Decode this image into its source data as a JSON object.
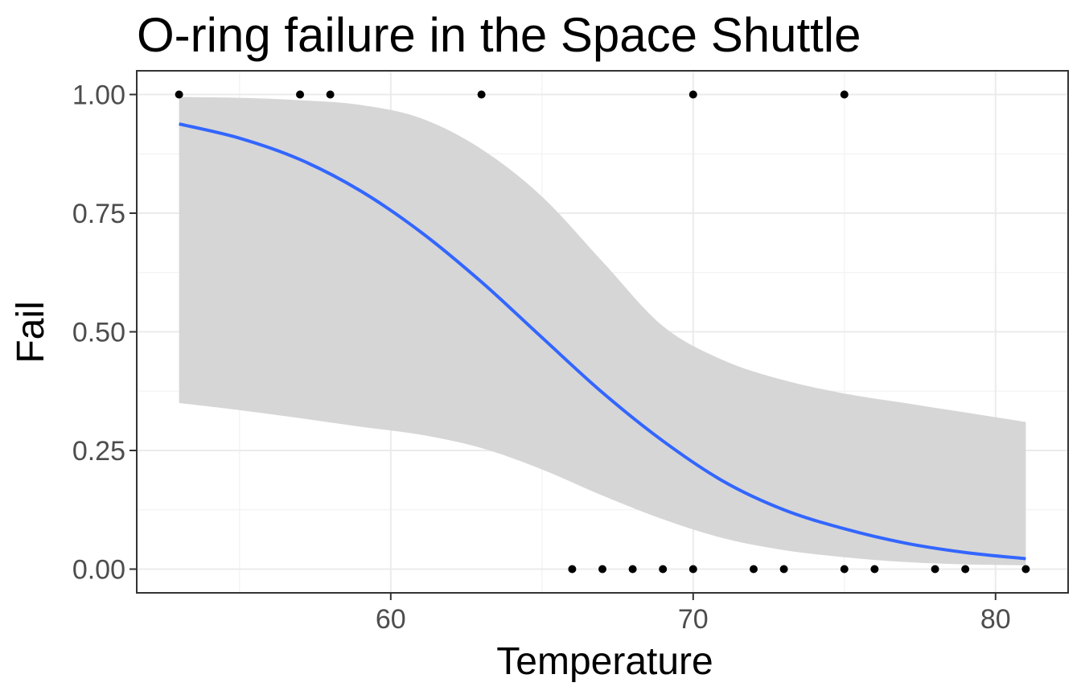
{
  "chart_data": {
    "type": "scatter",
    "title": "O-ring failure in the Space Shuttle",
    "xlabel": "Temperature",
    "ylabel": "Fail",
    "xlim": [
      51.6,
      82.4
    ],
    "ylim": [
      -0.05,
      1.05
    ],
    "x_ticks": [
      60,
      70,
      80
    ],
    "x_tick_labels": [
      "60",
      "70",
      "80"
    ],
    "y_ticks": [
      0,
      0.25,
      0.5,
      0.75,
      1
    ],
    "y_tick_labels": [
      "0.00",
      "0.25",
      "0.50",
      "0.75",
      "1.00"
    ],
    "grid": true,
    "legend": "none",
    "points": {
      "x": [
        53,
        57,
        58,
        63,
        70,
        75,
        66,
        67,
        68,
        69,
        70,
        72,
        73,
        75,
        76,
        78,
        79,
        81
      ],
      "y": [
        1,
        1,
        1,
        1,
        1,
        1,
        0,
        0,
        0,
        0,
        0,
        0,
        0,
        0,
        0,
        0,
        0,
        0
      ]
    },
    "fit": {
      "x": [
        53,
        55,
        57,
        59,
        61,
        63,
        65,
        67,
        69,
        71,
        73,
        75,
        77,
        79,
        81
      ],
      "y": [
        0.938,
        0.908,
        0.863,
        0.797,
        0.71,
        0.605,
        0.488,
        0.372,
        0.27,
        0.185,
        0.125,
        0.085,
        0.055,
        0.035,
        0.022
      ],
      "lower": [
        0.35,
        0.335,
        0.318,
        0.3,
        0.283,
        0.255,
        0.21,
        0.155,
        0.105,
        0.065,
        0.04,
        0.025,
        0.015,
        0.01,
        0.008
      ],
      "upper": [
        0.995,
        0.993,
        0.988,
        0.978,
        0.95,
        0.885,
        0.785,
        0.648,
        0.512,
        0.44,
        0.398,
        0.37,
        0.35,
        0.33,
        0.31
      ]
    },
    "colors": {
      "line": "#3366ff",
      "ribbon": "#d6d6d6",
      "points": "#000000",
      "grid_major": "#ebebeb",
      "grid_minor": "#f4f4f4",
      "panel_border": "#333333"
    }
  }
}
